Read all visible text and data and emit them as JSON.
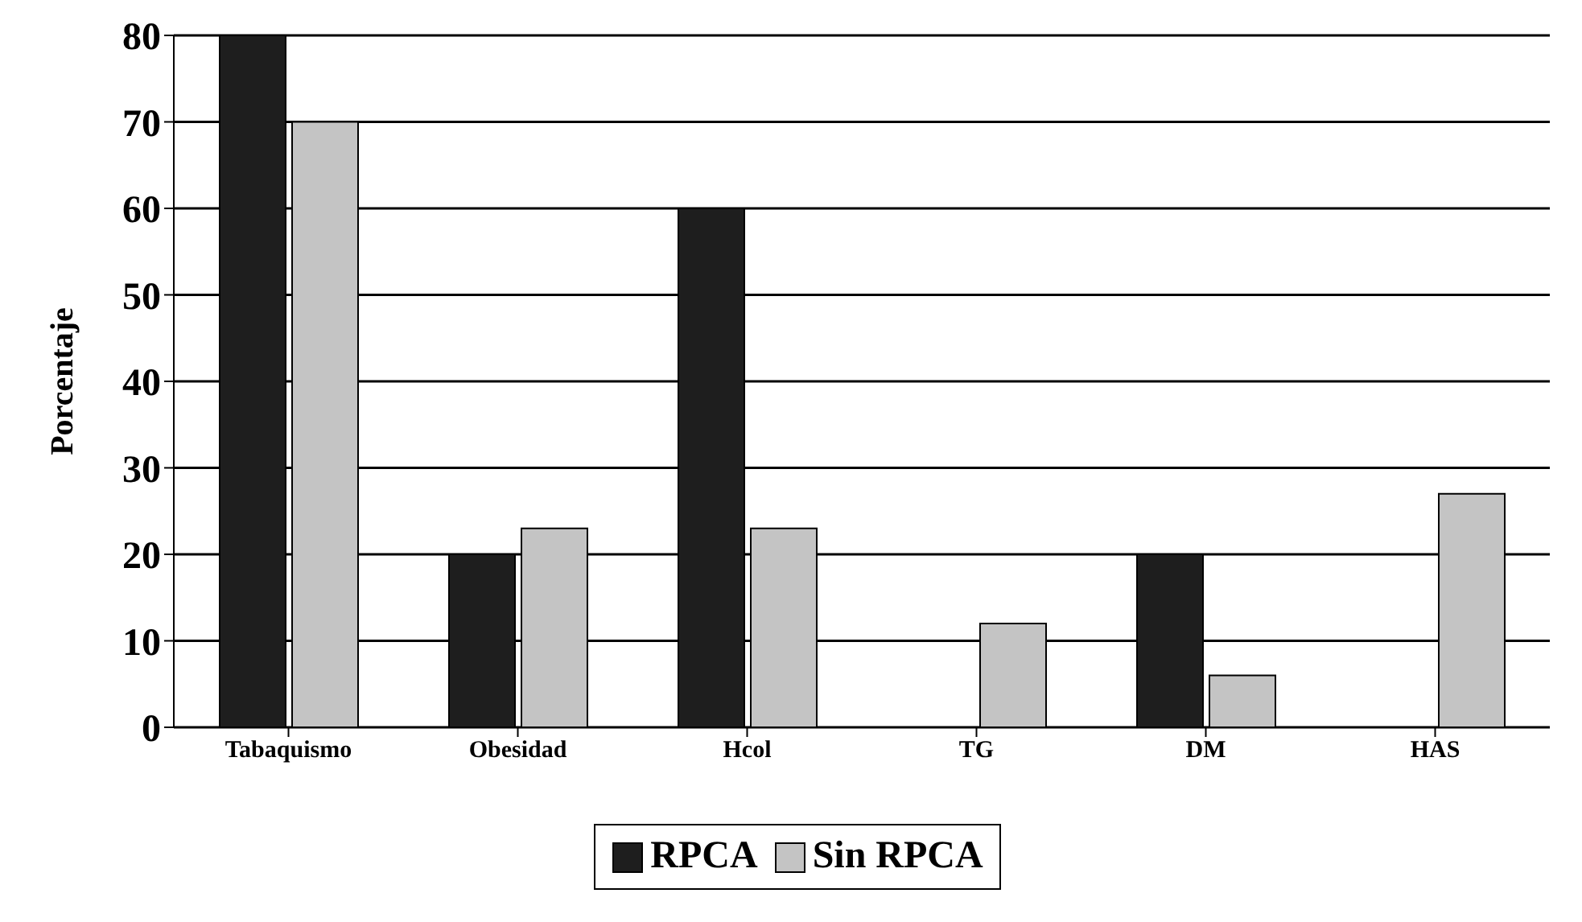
{
  "chart_data": {
    "type": "bar",
    "ylabel": "Porcentaje",
    "categories": [
      "Tabaquismo",
      "Obesidad",
      "Hcol",
      "TG",
      "DM",
      "HAS"
    ],
    "series": [
      {
        "name": "RPCA",
        "color": "#1e1e1e",
        "values": [
          80,
          20,
          60,
          0,
          20,
          0
        ]
      },
      {
        "name": "Sin RPCA",
        "color": "#c4c4c4",
        "values": [
          70,
          23,
          23,
          12,
          6,
          27
        ]
      }
    ],
    "ylim": [
      0,
      80
    ],
    "yticks": [
      0,
      10,
      20,
      30,
      40,
      50,
      60,
      70,
      80
    ],
    "grid": "y",
    "legend": "bottom"
  }
}
